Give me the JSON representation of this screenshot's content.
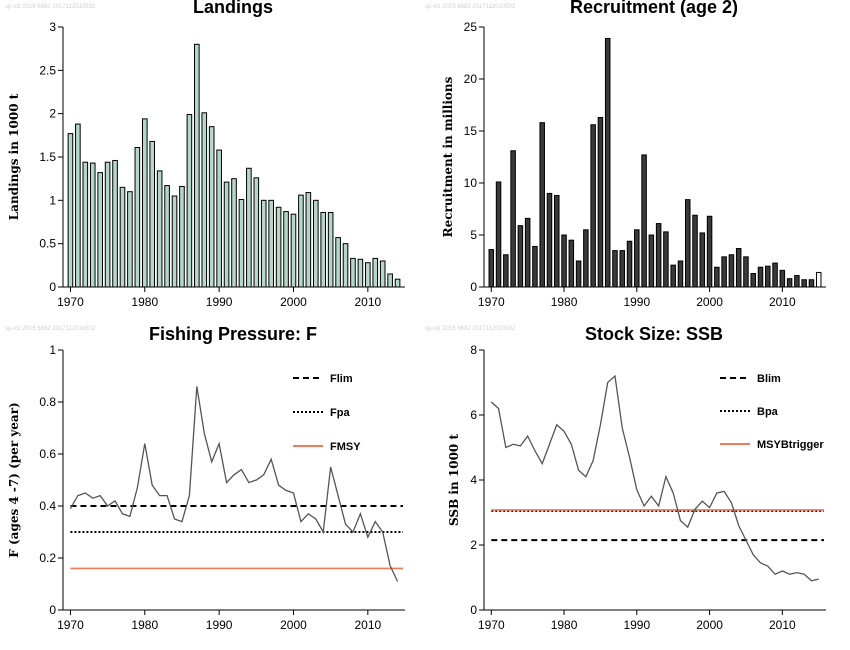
{
  "watermark": "sp-viz 2015 6682 2017112010502",
  "chart_data": [
    {
      "id": "landings",
      "type": "bar",
      "title": "Landings",
      "ylabel": "Landings in 1000 t",
      "xlim": [
        1969,
        2015
      ],
      "ylim": [
        0,
        3
      ],
      "xticks": [
        1970,
        1980,
        1990,
        2000,
        2010
      ],
      "yticks": [
        0,
        0.5,
        1,
        1.5,
        2,
        2.5,
        3
      ],
      "ytick_labels": [
        "0",
        "0.5",
        "1",
        "1.5",
        "2",
        "2.5",
        "3"
      ],
      "bar_color": "#b4d7ca",
      "x": [
        1970,
        1971,
        1972,
        1973,
        1974,
        1975,
        1976,
        1977,
        1978,
        1979,
        1980,
        1981,
        1982,
        1983,
        1984,
        1985,
        1986,
        1987,
        1988,
        1989,
        1990,
        1991,
        1992,
        1993,
        1994,
        1995,
        1996,
        1997,
        1998,
        1999,
        2000,
        2001,
        2002,
        2003,
        2004,
        2005,
        2006,
        2007,
        2008,
        2009,
        2010,
        2011,
        2012,
        2013,
        2014
      ],
      "values": [
        1.77,
        1.88,
        1.44,
        1.43,
        1.32,
        1.44,
        1.46,
        1.15,
        1.1,
        1.61,
        1.94,
        1.68,
        1.34,
        1.17,
        1.05,
        1.16,
        1.99,
        2.8,
        2.01,
        1.85,
        1.58,
        1.21,
        1.25,
        1.01,
        1.37,
        1.26,
        1.0,
        1.0,
        0.92,
        0.87,
        0.84,
        1.06,
        1.09,
        1.0,
        0.86,
        0.86,
        0.57,
        0.5,
        0.33,
        0.32,
        0.28,
        0.33,
        0.3,
        0.15,
        0.09
      ]
    },
    {
      "id": "recruitment",
      "type": "bar",
      "title": "Recruitment (age 2)",
      "ylabel": "Recruitment in millions",
      "xlim": [
        1969,
        2016
      ],
      "ylim": [
        0,
        25
      ],
      "xticks": [
        1970,
        1980,
        1990,
        2000,
        2010
      ],
      "yticks": [
        0,
        5,
        10,
        15,
        20,
        25
      ],
      "ytick_labels": [
        "0",
        "5",
        "10",
        "15",
        "20",
        "25"
      ],
      "bar_color": "#3a3a3a",
      "last_bar_color": "#ffffff",
      "x": [
        1970,
        1971,
        1972,
        1973,
        1974,
        1975,
        1976,
        1977,
        1978,
        1979,
        1980,
        1981,
        1982,
        1983,
        1984,
        1985,
        1986,
        1987,
        1988,
        1989,
        1990,
        1991,
        1992,
        1993,
        1994,
        1995,
        1996,
        1997,
        1998,
        1999,
        2000,
        2001,
        2002,
        2003,
        2004,
        2005,
        2006,
        2007,
        2008,
        2009,
        2010,
        2011,
        2012,
        2013,
        2014,
        2015
      ],
      "values": [
        3.6,
        10.1,
        3.1,
        13.1,
        5.9,
        6.6,
        3.9,
        15.8,
        9.0,
        8.8,
        5.0,
        4.5,
        2.5,
        5.5,
        15.6,
        16.3,
        23.9,
        3.5,
        3.5,
        4.4,
        5.5,
        12.7,
        5.0,
        6.1,
        5.3,
        2.1,
        2.5,
        8.4,
        6.9,
        5.2,
        6.8,
        1.9,
        2.9,
        3.1,
        3.7,
        2.9,
        1.3,
        1.9,
        2.0,
        2.3,
        1.6,
        0.8,
        1.1,
        0.7,
        0.7,
        1.4
      ]
    },
    {
      "id": "fishing_pressure",
      "type": "line",
      "title": "Fishing Pressure: F",
      "ylabel": "F (ages 4 -7) (per year)",
      "xlim": [
        1969,
        2015
      ],
      "ylim": [
        0,
        1
      ],
      "xticks": [
        1970,
        1980,
        1990,
        2000,
        2010
      ],
      "yticks": [
        0,
        0.2,
        0.4,
        0.6,
        0.8,
        1
      ],
      "ytick_labels": [
        "0",
        "0.2",
        "0.4",
        "0.6",
        "0.8",
        "1"
      ],
      "series": [
        {
          "color": "#555555",
          "x": [
            1970,
            1971,
            1972,
            1973,
            1974,
            1975,
            1976,
            1977,
            1978,
            1979,
            1980,
            1981,
            1982,
            1983,
            1984,
            1985,
            1986,
            1987,
            1988,
            1989,
            1990,
            1991,
            1992,
            1993,
            1994,
            1995,
            1996,
            1997,
            1998,
            1999,
            2000,
            2001,
            2002,
            2003,
            2004,
            2005,
            2006,
            2007,
            2008,
            2009,
            2010,
            2011,
            2012,
            2013,
            2014
          ],
          "values": [
            0.39,
            0.44,
            0.45,
            0.43,
            0.44,
            0.4,
            0.42,
            0.37,
            0.36,
            0.47,
            0.64,
            0.48,
            0.44,
            0.44,
            0.35,
            0.34,
            0.44,
            0.86,
            0.68,
            0.57,
            0.64,
            0.49,
            0.52,
            0.54,
            0.49,
            0.5,
            0.52,
            0.58,
            0.48,
            0.46,
            0.45,
            0.34,
            0.37,
            0.35,
            0.3,
            0.55,
            0.44,
            0.33,
            0.3,
            0.37,
            0.28,
            0.34,
            0.3,
            0.17,
            0.11
          ]
        }
      ],
      "reference_lines": [
        {
          "name": "Flim",
          "value": 0.4,
          "style": "dashed",
          "color": "#000000"
        },
        {
          "name": "Fpa",
          "value": 0.3,
          "style": "dotted",
          "color": "#000000"
        },
        {
          "name": "FMSY",
          "value": 0.16,
          "style": "solid",
          "color": "#f27a5a"
        }
      ],
      "legend_position": "top-right"
    },
    {
      "id": "stock_size",
      "type": "line",
      "title": "Stock Size: SSB",
      "ylabel": "SSB in 1000 t",
      "xlim": [
        1969,
        2016
      ],
      "ylim": [
        0,
        8
      ],
      "xticks": [
        1970,
        1980,
        1990,
        2000,
        2010
      ],
      "yticks": [
        0,
        2,
        4,
        6,
        8
      ],
      "ytick_labels": [
        "0",
        "2",
        "4",
        "6",
        "8"
      ],
      "series": [
        {
          "color": "#555555",
          "x": [
            1970,
            1971,
            1972,
            1973,
            1974,
            1975,
            1976,
            1977,
            1978,
            1979,
            1980,
            1981,
            1982,
            1983,
            1984,
            1985,
            1986,
            1987,
            1988,
            1989,
            1990,
            1991,
            1992,
            1993,
            1994,
            1995,
            1996,
            1997,
            1998,
            1999,
            2000,
            2001,
            2002,
            2003,
            2004,
            2005,
            2006,
            2007,
            2008,
            2009,
            2010,
            2011,
            2012,
            2013,
            2014,
            2015
          ],
          "values": [
            6.4,
            6.2,
            5.0,
            5.1,
            5.05,
            5.35,
            4.9,
            4.5,
            5.1,
            5.7,
            5.5,
            5.1,
            4.3,
            4.1,
            4.6,
            5.7,
            7.0,
            7.2,
            5.6,
            4.7,
            3.7,
            3.2,
            3.5,
            3.2,
            4.1,
            3.6,
            2.75,
            2.55,
            3.1,
            3.35,
            3.15,
            3.6,
            3.65,
            3.3,
            2.6,
            2.15,
            1.7,
            1.45,
            1.35,
            1.1,
            1.2,
            1.1,
            1.15,
            1.1,
            0.9,
            0.95
          ]
        }
      ],
      "reference_lines": [
        {
          "name": "Blim",
          "value": 2.15,
          "style": "dashed",
          "color": "#000000"
        },
        {
          "name": "Bpa",
          "value": 3.05,
          "style": "dotted",
          "color": "#000000"
        },
        {
          "name": "MSYBtrigger",
          "value": 3.08,
          "style": "solid",
          "color": "#f27a5a"
        }
      ],
      "legend_position": "top-right"
    }
  ]
}
